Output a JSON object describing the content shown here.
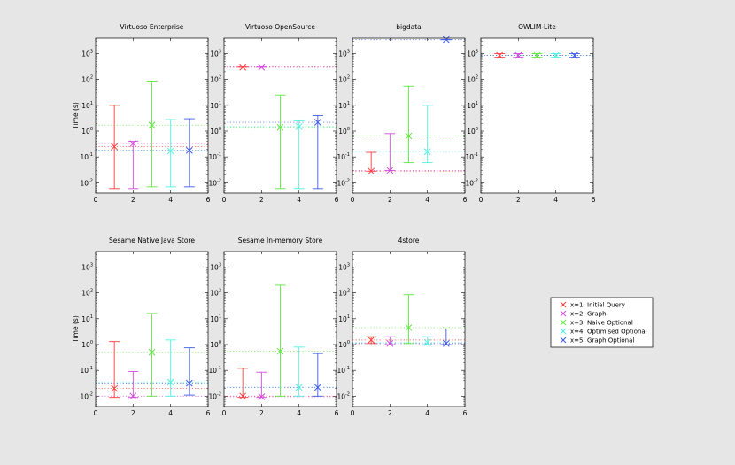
{
  "chart_data": {
    "type": "scatter",
    "ylabel": "Time (s)",
    "xlim": [
      0,
      6
    ],
    "xticks": [
      "0",
      "2",
      "4",
      "6"
    ],
    "ylim_log10": [
      -2.4,
      3.6
    ],
    "ytick_exponents": [
      "-2",
      "-1",
      "0",
      "1",
      "2",
      "3"
    ],
    "legend": [
      {
        "label": "x=1: Initial Query",
        "color": "#ff3b3b"
      },
      {
        "label": "x=2: Graph",
        "color": "#d04bdc"
      },
      {
        "label": "x=3: Naive Optional",
        "color": "#5fe83f"
      },
      {
        "label": "x=4: Optimised Optional",
        "color": "#4ff2e2"
      },
      {
        "label": "x=5: Graph Optional",
        "color": "#3d5be8"
      }
    ],
    "panels": [
      {
        "title": "Virtuoso Enterprise",
        "points": [
          {
            "x": 1,
            "y": 0.25,
            "min": 0.006,
            "max": 10
          },
          {
            "x": 2,
            "y": 0.33,
            "min": 0.006,
            "max": 0.4
          },
          {
            "x": 3,
            "y": 1.7,
            "min": 0.007,
            "max": 80
          },
          {
            "x": 4,
            "y": 0.17,
            "min": 0.007,
            "max": 2.8
          },
          {
            "x": 5,
            "y": 0.18,
            "min": 0.007,
            "max": 3
          }
        ]
      },
      {
        "title": "Virtuoso OpenSource",
        "points": [
          {
            "x": 1,
            "y": 300,
            "min": 300,
            "max": 300
          },
          {
            "x": 2,
            "y": 300,
            "min": 300,
            "max": 300
          },
          {
            "x": 3,
            "y": 1.4,
            "min": 0.006,
            "max": 25
          },
          {
            "x": 4,
            "y": 1.5,
            "min": 0.006,
            "max": 2.5
          },
          {
            "x": 5,
            "y": 2.2,
            "min": 0.006,
            "max": 4
          }
        ]
      },
      {
        "title": "bigdata",
        "points": [
          {
            "x": 1,
            "y": 0.028,
            "min": 0.028,
            "max": 0.15
          },
          {
            "x": 2,
            "y": 0.03,
            "min": 0.03,
            "max": 0.8
          },
          {
            "x": 3,
            "y": 0.65,
            "min": 0.06,
            "max": 55
          },
          {
            "x": 4,
            "y": 0.16,
            "min": 0.06,
            "max": 10
          },
          {
            "x": 5,
            "y": 3500,
            "min": 3500,
            "max": 3500
          }
        ]
      },
      {
        "title": "OWLIM-Lite",
        "points": [
          {
            "x": 1,
            "y": 850,
            "min": 720,
            "max": 1000
          },
          {
            "x": 2,
            "y": 850,
            "min": 720,
            "max": 1000
          },
          {
            "x": 3,
            "y": 850,
            "min": 720,
            "max": 1000
          },
          {
            "x": 4,
            "y": 850,
            "min": 720,
            "max": 1000
          },
          {
            "x": 5,
            "y": 850,
            "min": 720,
            "max": 1000
          }
        ]
      },
      {
        "title": "Sesame Native Java Store",
        "points": [
          {
            "x": 1,
            "y": 0.02,
            "min": 0.009,
            "max": 1.3
          },
          {
            "x": 2,
            "y": 0.01,
            "min": 0.009,
            "max": 0.09
          },
          {
            "x": 3,
            "y": 0.5,
            "min": 0.01,
            "max": 16
          },
          {
            "x": 4,
            "y": 0.035,
            "min": 0.01,
            "max": 1.5
          },
          {
            "x": 5,
            "y": 0.032,
            "min": 0.011,
            "max": 0.75
          }
        ]
      },
      {
        "title": "Sesame In-memory Store",
        "points": [
          {
            "x": 1,
            "y": 0.01,
            "min": 0.009,
            "max": 0.12
          },
          {
            "x": 2,
            "y": 0.0095,
            "min": 0.009,
            "max": 0.085
          },
          {
            "x": 3,
            "y": 0.55,
            "min": 0.01,
            "max": 200
          },
          {
            "x": 4,
            "y": 0.022,
            "min": 0.01,
            "max": 0.8
          },
          {
            "x": 5,
            "y": 0.022,
            "min": 0.01,
            "max": 0.45
          }
        ]
      },
      {
        "title": "4store",
        "points": [
          {
            "x": 1,
            "y": 1.5,
            "min": 1.1,
            "max": 2
          },
          {
            "x": 2,
            "y": 1.1,
            "min": 1.0,
            "max": 2
          },
          {
            "x": 3,
            "y": 4.5,
            "min": 1.1,
            "max": 85
          },
          {
            "x": 4,
            "y": 1.2,
            "min": 1.0,
            "max": 2
          },
          {
            "x": 5,
            "y": 1.1,
            "min": 1.0,
            "max": 4
          }
        ]
      }
    ]
  }
}
